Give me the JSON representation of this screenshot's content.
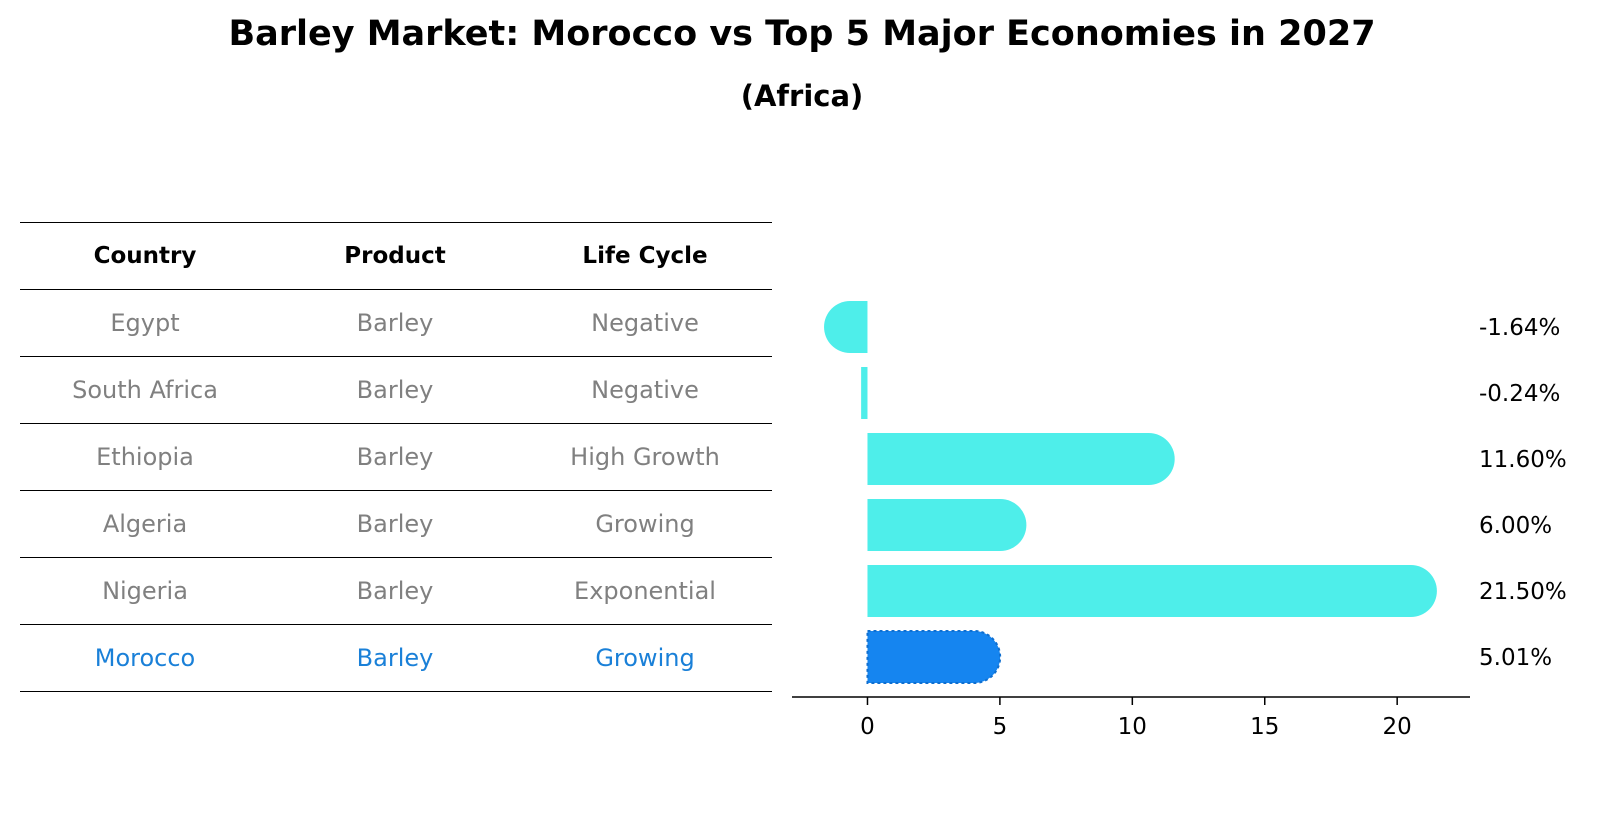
{
  "title": "Barley Market: Morocco vs Top 5 Major Economies in 2027",
  "subtitle": "(Africa)",
  "table": {
    "headers": [
      "Country",
      "Product",
      "Life Cycle"
    ],
    "rows": [
      {
        "country": "Egypt",
        "product": "Barley",
        "life_cycle": "Negative"
      },
      {
        "country": "South Africa",
        "product": "Barley",
        "life_cycle": "Negative"
      },
      {
        "country": "Ethiopia",
        "product": "Barley",
        "life_cycle": "High Growth"
      },
      {
        "country": "Algeria",
        "product": "Barley",
        "life_cycle": "Growing"
      },
      {
        "country": "Nigeria",
        "product": "Barley",
        "life_cycle": "Exponential"
      },
      {
        "country": "Morocco",
        "product": "Barley",
        "life_cycle": "Growing"
      }
    ]
  },
  "colors": {
    "bar": "#4eeeea",
    "highlight_bar": "#1585f0",
    "highlight_text": "#1a80d8",
    "muted_text": "#808080"
  },
  "chart_data": {
    "type": "bar",
    "orientation": "horizontal",
    "categories": [
      "Egypt",
      "South Africa",
      "Ethiopia",
      "Algeria",
      "Nigeria",
      "Morocco"
    ],
    "values": [
      -1.64,
      -0.24,
      11.6,
      6.0,
      21.5,
      5.01
    ],
    "value_labels": [
      "-1.64%",
      "-0.24%",
      "11.60%",
      "6.00%",
      "21.50%",
      "5.01%"
    ],
    "highlight": "Morocco",
    "xlim": [
      -2.85,
      22.75
    ],
    "xticks": [
      0,
      5,
      10,
      15,
      20
    ],
    "grid": false
  }
}
